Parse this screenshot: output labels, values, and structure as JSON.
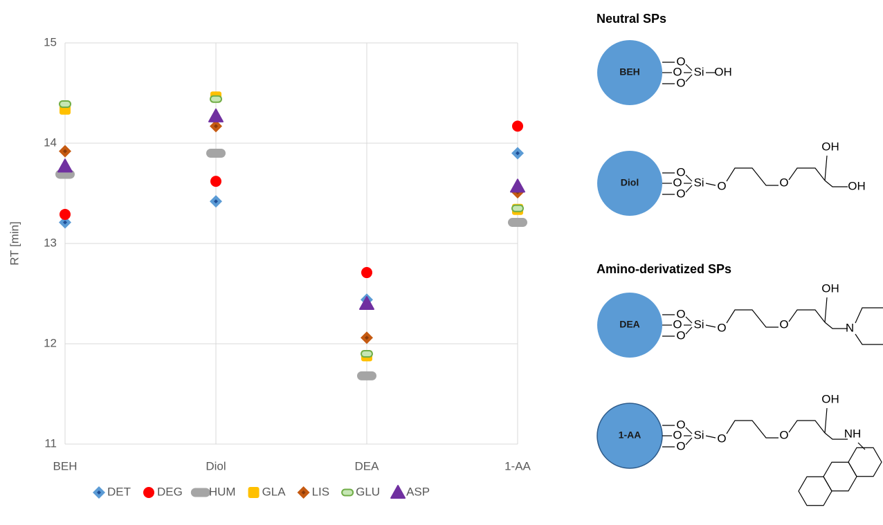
{
  "chart_data": {
    "type": "scatter",
    "y_label": "RT [min]",
    "categories": [
      "BEH",
      "Diol",
      "DEA",
      "1-AA"
    ],
    "ylim": [
      11,
      15
    ],
    "yticks": [
      11,
      12,
      13,
      14,
      15
    ],
    "grid": true,
    "legend": "bottom",
    "series": [
      {
        "name": "DET",
        "color": "#5b9bd5",
        "marker": "diamond",
        "values": [
          13.21,
          13.42,
          12.44,
          13.9
        ]
      },
      {
        "name": "DEG",
        "color": "#ff0000",
        "marker": "circle",
        "values": [
          13.29,
          13.62,
          12.71,
          14.17
        ]
      },
      {
        "name": "HUM",
        "color": "#a5a5a5",
        "marker": "pill",
        "values": [
          13.69,
          13.9,
          11.68,
          13.21
        ]
      },
      {
        "name": "GLA",
        "color": "#ffc000",
        "marker": "square",
        "values": [
          14.34,
          14.46,
          11.88,
          13.34
        ]
      },
      {
        "name": "LIS",
        "color": "#c55a11",
        "marker": "diamond",
        "values": [
          13.92,
          14.17,
          12.06,
          13.51
        ]
      },
      {
        "name": "GLU",
        "color": "#70ad47",
        "marker": "pill-outline",
        "values": [
          14.39,
          14.44,
          11.9,
          13.35
        ]
      },
      {
        "name": "ASP",
        "color": "#7030a0",
        "marker": "triangle",
        "values": [
          13.77,
          14.27,
          12.4,
          13.57
        ]
      }
    ]
  },
  "diagram": {
    "sections": [
      "Neutral SPs",
      "Amino-derivatized SPs"
    ],
    "structures": [
      {
        "label": "BEH",
        "atoms": [
          "O",
          "O",
          "O",
          "Si",
          "OH"
        ]
      },
      {
        "label": "Diol",
        "atoms": [
          "O",
          "O",
          "O",
          "Si",
          "O",
          "O",
          "OH",
          "OH"
        ]
      },
      {
        "label": "DEA",
        "atoms": [
          "O",
          "O",
          "O",
          "Si",
          "O",
          "O",
          "OH",
          "N"
        ]
      },
      {
        "label": "1-AA",
        "atoms": [
          "O",
          "O",
          "O",
          "Si",
          "O",
          "O",
          "OH",
          "NH"
        ]
      }
    ]
  }
}
